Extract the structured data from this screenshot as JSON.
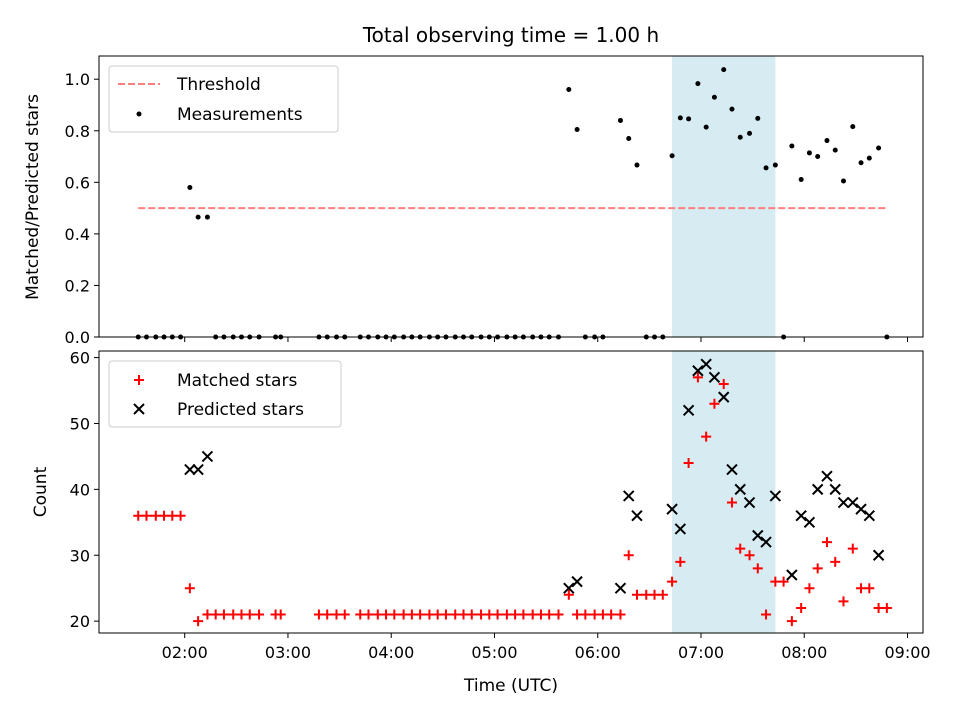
{
  "title": "Total observing time = 1.00 h",
  "chart_data": [
    {
      "type": "scatter",
      "panel": "top",
      "ylabel": "Matched/Predicted stars",
      "ylim": [
        0,
        1.09
      ],
      "yticks": [
        "0.0",
        "0.2",
        "0.4",
        "0.6",
        "0.8",
        "1.0"
      ],
      "xlim_hours": [
        1.17,
        9.15
      ],
      "grid": false,
      "legend_position": "upper-left",
      "shaded_interval_hours": [
        6.72,
        7.72
      ],
      "threshold": {
        "name": "Threshold",
        "value": 0.5,
        "x_hours": [
          1.55,
          8.8
        ],
        "color": "#ff7f7f"
      },
      "series": [
        {
          "name": "Measurements",
          "color": "#000000",
          "x_hours": [
            1.55,
            1.63,
            1.72,
            1.8,
            1.88,
            1.96,
            2.05,
            2.13,
            2.22,
            2.3,
            2.38,
            2.47,
            2.55,
            2.63,
            2.72,
            2.88,
            2.93,
            3.3,
            3.38,
            3.47,
            3.55,
            3.7,
            3.78,
            3.87,
            3.95,
            4.03,
            4.12,
            4.2,
            4.28,
            4.37,
            4.45,
            4.53,
            4.62,
            4.7,
            4.78,
            4.87,
            4.95,
            5.03,
            5.12,
            5.2,
            5.28,
            5.37,
            5.45,
            5.53,
            5.62,
            5.72,
            5.8,
            5.88,
            5.97,
            6.05,
            6.22,
            6.3,
            6.38,
            6.47,
            6.55,
            6.63,
            6.72,
            6.8,
            6.88,
            6.97,
            7.05,
            7.13,
            7.22,
            7.3,
            7.38,
            7.47,
            7.55,
            7.63,
            7.72,
            7.8,
            7.88,
            7.97,
            8.05,
            8.13,
            8.22,
            8.3,
            8.38,
            8.47,
            8.55,
            8.63,
            8.72,
            8.8
          ],
          "y": [
            0,
            0,
            0,
            0,
            0,
            0,
            0.58,
            0.465,
            0.465,
            0,
            0,
            0,
            0,
            0,
            0,
            0,
            0,
            0,
            0,
            0,
            0,
            0,
            0,
            0,
            0,
            0,
            0,
            0,
            0,
            0,
            0,
            0,
            0,
            0,
            0,
            0,
            0,
            0,
            0,
            0,
            0,
            0,
            0,
            0,
            0,
            0.96,
            0.805,
            0,
            0,
            0,
            0.84,
            0.77,
            0.667,
            0,
            0,
            0,
            0.703,
            0.85,
            0.846,
            0.983,
            0.814,
            0.93,
            1.037,
            0.884,
            0.775,
            0.79,
            0.848,
            0.656,
            0.667,
            0,
            0.741,
            0.611,
            0.714,
            0.7,
            0.762,
            0.725,
            0.605,
            0.816,
            0.676,
            0.694,
            0.733,
            0
          ]
        }
      ]
    },
    {
      "type": "scatter",
      "panel": "bottom",
      "xlabel": "Time (UTC)",
      "ylabel": "Count",
      "ylim": [
        18.2,
        61
      ],
      "yticks": [
        "20",
        "30",
        "40",
        "50",
        "60"
      ],
      "xlim_hours": [
        1.17,
        9.15
      ],
      "xticks": [
        "02:00",
        "03:00",
        "04:00",
        "05:00",
        "06:00",
        "07:00",
        "08:00",
        "09:00"
      ],
      "grid": false,
      "legend_position": "upper-left",
      "shaded_interval_hours": [
        6.72,
        7.72
      ],
      "series": [
        {
          "name": "Matched stars",
          "marker": "+",
          "color": "#ff0000",
          "x_hours": [
            1.55,
            1.63,
            1.72,
            1.8,
            1.88,
            1.96,
            2.05,
            2.13,
            2.22,
            2.3,
            2.38,
            2.47,
            2.55,
            2.63,
            2.72,
            2.88,
            2.93,
            3.3,
            3.38,
            3.47,
            3.55,
            3.7,
            3.78,
            3.87,
            3.95,
            4.03,
            4.12,
            4.2,
            4.28,
            4.37,
            4.45,
            4.53,
            4.62,
            4.7,
            4.78,
            4.87,
            4.95,
            5.03,
            5.12,
            5.2,
            5.28,
            5.37,
            5.45,
            5.53,
            5.62,
            5.72,
            5.8,
            5.88,
            5.97,
            6.05,
            6.13,
            6.22,
            6.3,
            6.38,
            6.47,
            6.55,
            6.63,
            6.72,
            6.8,
            6.88,
            6.97,
            7.05,
            7.13,
            7.22,
            7.3,
            7.38,
            7.47,
            7.55,
            7.63,
            7.72,
            7.8,
            7.88,
            7.97,
            8.05,
            8.13,
            8.22,
            8.3,
            8.38,
            8.47,
            8.55,
            8.63,
            8.72,
            8.8
          ],
          "y": [
            36,
            36,
            36,
            36,
            36,
            36,
            25,
            20,
            21,
            21,
            21,
            21,
            21,
            21,
            21,
            21,
            21,
            21,
            21,
            21,
            21,
            21,
            21,
            21,
            21,
            21,
            21,
            21,
            21,
            21,
            21,
            21,
            21,
            21,
            21,
            21,
            21,
            21,
            21,
            21,
            21,
            21,
            21,
            21,
            21,
            24,
            21,
            21,
            21,
            21,
            21,
            21,
            30,
            24,
            24,
            24,
            24,
            26,
            29,
            44,
            57,
            48,
            53,
            56,
            38,
            31,
            30,
            28,
            21,
            26,
            26,
            20,
            22,
            25,
            28,
            32,
            29,
            23,
            31,
            25,
            25,
            22,
            22
          ]
        },
        {
          "name": "Predicted stars",
          "marker": "x",
          "color": "#000000",
          "x_hours": [
            2.05,
            2.13,
            2.22,
            5.72,
            5.8,
            6.22,
            6.3,
            6.38,
            6.72,
            6.8,
            6.88,
            6.97,
            7.05,
            7.13,
            7.22,
            7.3,
            7.38,
            7.47,
            7.55,
            7.63,
            7.72,
            7.88,
            7.97,
            8.05,
            8.13,
            8.22,
            8.3,
            8.38,
            8.47,
            8.55,
            8.63,
            8.72
          ],
          "y": [
            43,
            43,
            45,
            25,
            26,
            25,
            39,
            36,
            37,
            34,
            52,
            58,
            59,
            57,
            54,
            43,
            40,
            38,
            33,
            32,
            39,
            27,
            36,
            35,
            40,
            42,
            40,
            38,
            38,
            37,
            36,
            30
          ]
        }
      ]
    }
  ]
}
